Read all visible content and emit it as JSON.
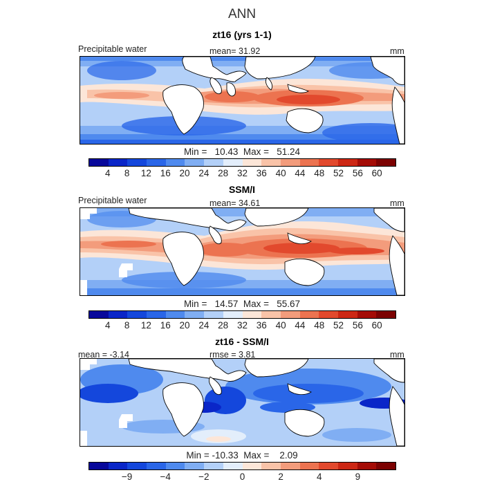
{
  "figure_title": "ANN",
  "palette": [
    "#08089b",
    "#0a26c8",
    "#1447dc",
    "#2a66e8",
    "#4f8aee",
    "#80aef3",
    "#b3d0f8",
    "#e3eefb",
    "#fce6d8",
    "#f9c3a8",
    "#f39c7c",
    "#ec7350",
    "#e2492d",
    "#cc2714",
    "#a40c06",
    "#7c0202"
  ],
  "panels": [
    {
      "title": "zt16 (yrs 1-1)",
      "left_label": "Precipitable water",
      "center_label": "mean=   31.92",
      "right_label": "mm",
      "stats": "Min =   10.43  Max =   51.24",
      "tick_labels": [
        "4",
        "8",
        "12",
        "16",
        "20",
        "24",
        "28",
        "32",
        "36",
        "40",
        "44",
        "48",
        "52",
        "56",
        "60"
      ]
    },
    {
      "title": "SSM/I",
      "left_label": "Precipitable water",
      "center_label": "mean=   34.61",
      "right_label": "mm",
      "stats": "Min =   14.57  Max =   55.67",
      "tick_labels": [
        "4",
        "8",
        "12",
        "16",
        "20",
        "24",
        "28",
        "32",
        "36",
        "40",
        "44",
        "48",
        "52",
        "56",
        "60"
      ]
    },
    {
      "title": "zt16 - SSM/I",
      "left_label": "mean =   -3.14",
      "center_label": "rmse =    3.81",
      "right_label": "mm",
      "stats": "Min = -10.33  Max =    2.09",
      "tick_labels": [
        "-9",
        "-4",
        "-2",
        "0",
        "2",
        "4",
        "9"
      ]
    }
  ]
}
